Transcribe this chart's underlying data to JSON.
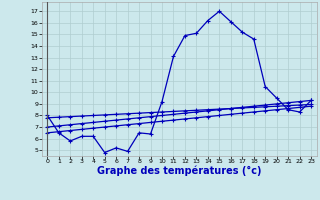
{
  "background_color": "#cce8ec",
  "grid_color": "#b0cdd0",
  "line_color": "#0000bb",
  "xlabel": "Graphe des températures (°c)",
  "xlabel_fontsize": 7,
  "yticks": [
    5,
    6,
    7,
    8,
    9,
    10,
    11,
    12,
    13,
    14,
    15,
    16,
    17
  ],
  "xticks": [
    0,
    1,
    2,
    3,
    4,
    5,
    6,
    7,
    8,
    9,
    10,
    11,
    12,
    13,
    14,
    15,
    16,
    17,
    18,
    19,
    20,
    21,
    22,
    23
  ],
  "ylim": [
    4.5,
    17.8
  ],
  "xlim": [
    -0.5,
    23.5
  ],
  "hours": [
    0,
    1,
    2,
    3,
    4,
    5,
    6,
    7,
    8,
    9,
    10,
    11,
    12,
    13,
    14,
    15,
    16,
    17,
    18,
    19,
    20,
    21,
    22,
    23
  ],
  "temp_main": [
    8.0,
    6.5,
    5.8,
    6.2,
    6.2,
    4.8,
    5.2,
    4.9,
    6.5,
    6.4,
    9.2,
    13.1,
    14.9,
    15.1,
    16.2,
    17.0,
    16.1,
    15.2,
    14.6,
    10.5,
    9.5,
    8.5,
    8.3,
    9.3
  ],
  "temp_line1": [
    7.8,
    7.85,
    7.9,
    7.95,
    8.0,
    8.05,
    8.1,
    8.15,
    8.2,
    8.25,
    8.3,
    8.35,
    8.4,
    8.45,
    8.5,
    8.55,
    8.6,
    8.65,
    8.7,
    8.75,
    8.8,
    8.85,
    8.9,
    8.95
  ],
  "temp_line2": [
    7.0,
    7.1,
    7.2,
    7.3,
    7.4,
    7.5,
    7.6,
    7.7,
    7.8,
    7.9,
    8.0,
    8.1,
    8.2,
    8.3,
    8.4,
    8.5,
    8.6,
    8.7,
    8.8,
    8.9,
    9.0,
    9.1,
    9.2,
    9.3
  ],
  "temp_line3": [
    6.5,
    6.6,
    6.7,
    6.8,
    6.9,
    7.0,
    7.1,
    7.2,
    7.3,
    7.4,
    7.5,
    7.6,
    7.7,
    7.8,
    7.9,
    8.0,
    8.1,
    8.2,
    8.3,
    8.4,
    8.5,
    8.6,
    8.7,
    8.8
  ]
}
